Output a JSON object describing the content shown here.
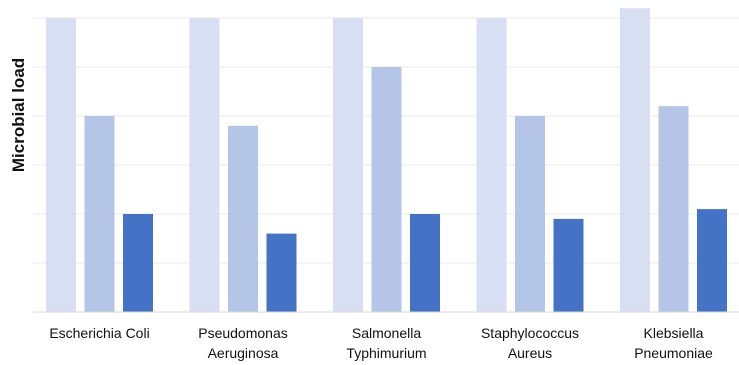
{
  "chart_data": {
    "type": "bar",
    "title": "",
    "xlabel": "",
    "ylabel": "Microbial load",
    "ylim": [
      0,
      6
    ],
    "grid": true,
    "legend": "none",
    "categories": [
      [
        "Escherichia Coli"
      ],
      [
        "Pseudomonas",
        "Aeruginosa"
      ],
      [
        "Salmonella",
        "Typhimurium"
      ],
      [
        "Staphylococcus",
        "Aureus"
      ],
      [
        "Klebsiella",
        "Pneumoniae"
      ]
    ],
    "series": [
      {
        "values": [
          6.0,
          6.0,
          6.0,
          6.0,
          6.2
        ],
        "color": "#d9dff2"
      },
      {
        "values": [
          4.0,
          3.8,
          5.0,
          4.0,
          4.2
        ],
        "color": "#b4c5e7"
      },
      {
        "values": [
          2.0,
          1.6,
          2.0,
          1.9,
          2.1
        ],
        "color": "#4472c4"
      }
    ],
    "gridline_color": "#e8e8e8",
    "axis_color": "#d9d9d9"
  }
}
